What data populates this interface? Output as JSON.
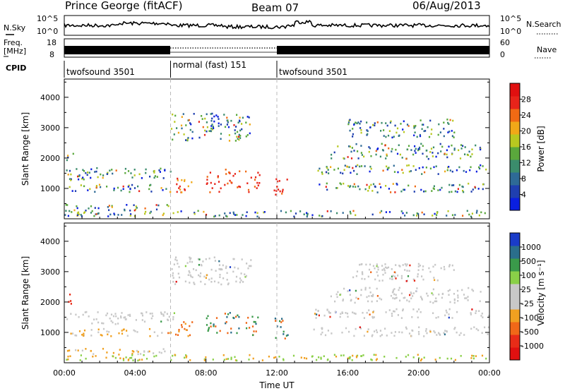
{
  "header": {
    "station": "Prince George (fitACF)",
    "beam": "Beam 07",
    "date": "06/Aug/2013"
  },
  "panels": {
    "sky": {
      "left_label": "N.Sky",
      "right_label": "N.Search",
      "left_ticks": [
        "10^5",
        "10^0"
      ],
      "right_ticks": [
        "10^5",
        "10^0"
      ]
    },
    "freq": {
      "left_label_1": "Freq.",
      "left_label_2": "[MHz]",
      "right_label": "Nave",
      "left_ticks": [
        "18",
        "8"
      ],
      "right_ticks": [
        "60",
        "0"
      ]
    },
    "cpid": {
      "label": "CPID"
    }
  },
  "cpid_segments": [
    {
      "start": 0,
      "end": 6,
      "label": "twofsound 3501"
    },
    {
      "start": 6,
      "end": 12,
      "label": "normal (fast) 151"
    },
    {
      "start": 12,
      "end": 24,
      "label": "twofsound 3501"
    }
  ],
  "chart_data": [
    {
      "type": "heatmap",
      "name": "power",
      "ylabel": "Slant Range [km]",
      "xlim": [
        0,
        24
      ],
      "ylim": [
        0,
        4600
      ],
      "yticks": [
        "1000",
        "2000",
        "3000",
        "4000"
      ],
      "colorbar_label": "Power [dB]",
      "colorbar_ticks": [
        "4",
        "8",
        "12",
        "16",
        "20",
        "24",
        "28"
      ],
      "colorscale": [
        "#0a1fe0",
        "#1f3fb0",
        "#2e6a96",
        "#3b8c6c",
        "#5aa83c",
        "#b8c820",
        "#f0a818",
        "#f06a14",
        "#e8241a",
        "#e01010"
      ]
    },
    {
      "type": "heatmap",
      "name": "velocity",
      "ylabel": "Slant Range [km]",
      "xlabel": "Time UT",
      "xlim": [
        0,
        24
      ],
      "ylim": [
        0,
        4600
      ],
      "yticks": [
        "1000",
        "2000",
        "3000",
        "4000"
      ],
      "xticks": [
        "00:00",
        "04:00",
        "08:00",
        "12:00",
        "16:00",
        "20:00",
        "00:00"
      ],
      "colorbar_label": "Velocity [m s⁻¹]",
      "colorbar_ticks": [
        "1000",
        "500",
        "100",
        "25",
        "-25",
        "-100",
        "-500",
        "-1000"
      ],
      "colorscale": [
        "#1a3cc8",
        "#2a6e8c",
        "#3a9a4a",
        "#8ad048",
        "#c8c8c8",
        "#c8c8c8",
        "#f0a020",
        "#f06818",
        "#e82c18",
        "#e01010"
      ]
    }
  ]
}
